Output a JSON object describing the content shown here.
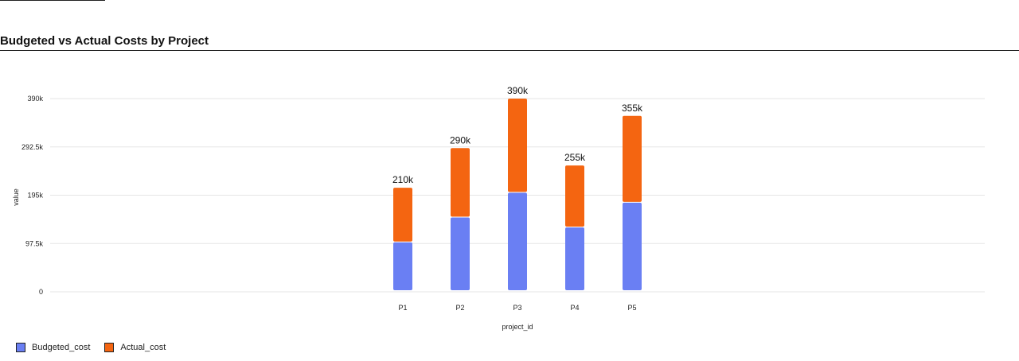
{
  "chart_data": {
    "type": "bar",
    "stacked": true,
    "title": "Budgeted vs Actual Costs by Project",
    "xlabel": "project_id",
    "ylabel": "value",
    "categories": [
      "P1",
      "P2",
      "P3",
      "P4",
      "P5"
    ],
    "series": [
      {
        "name": "Budgeted_cost",
        "color": "#6a7ff3",
        "values": [
          100000,
          150000,
          200000,
          130000,
          180000
        ]
      },
      {
        "name": "Actual_cost",
        "color": "#f46511",
        "values": [
          110000,
          140000,
          190000,
          125000,
          175000
        ]
      }
    ],
    "totals_labels": [
      "210k",
      "290k",
      "390k",
      "255k",
      "355k"
    ],
    "y_ticks": [
      "0",
      "97.5k",
      "195k",
      "292.5k",
      "390k"
    ],
    "ylim": [
      0,
      390000
    ],
    "grid": true,
    "legend_position": "bottom-left"
  }
}
